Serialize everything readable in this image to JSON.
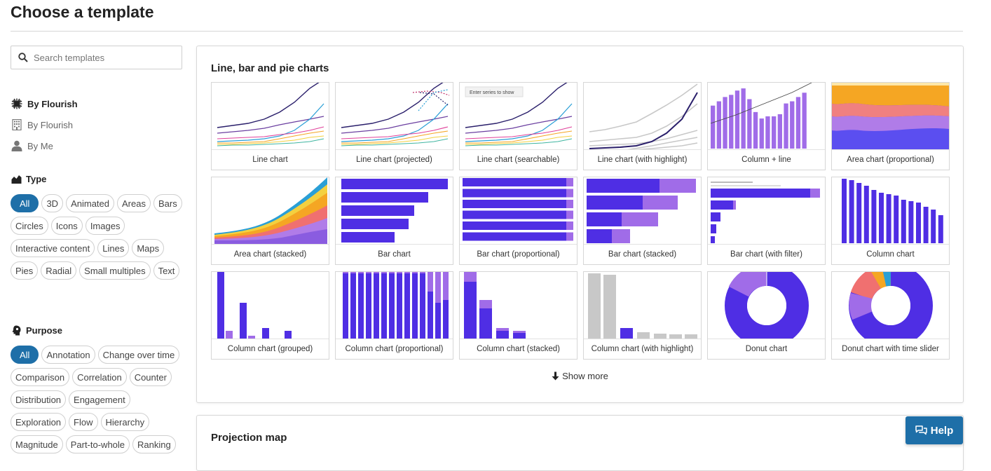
{
  "header": {
    "title": "Choose a template"
  },
  "search": {
    "placeholder": "Search templates"
  },
  "sidebar": {
    "sources": [
      {
        "label": "By Flourish",
        "icon": "sunburst-icon"
      },
      {
        "label": "By Flourish",
        "icon": "building-icon"
      },
      {
        "label": "By Me",
        "icon": "person-icon"
      }
    ],
    "type_heading": "Type",
    "type_filters": [
      "All",
      "3D",
      "Animated",
      "Areas",
      "Bars",
      "Circles",
      "Icons",
      "Images",
      "Interactive content",
      "Lines",
      "Maps",
      "Pies",
      "Radial",
      "Small multiples",
      "Text"
    ],
    "purpose_heading": "Purpose",
    "purpose_filters": [
      "All",
      "Annotation",
      "Change over time",
      "Comparison",
      "Correlation",
      "Counter",
      "Distribution",
      "Engagement",
      "Exploration",
      "Flow",
      "Hierarchy",
      "Magnitude",
      "Part-to-whole",
      "Ranking"
    ]
  },
  "sections": [
    {
      "title": "Line, bar and pie charts",
      "templates": [
        "Line chart",
        "Line chart (projected)",
        "Line chart (searchable)",
        "Line chart (with highlight)",
        "Column + line",
        "Area chart (proportional)",
        "Area chart (stacked)",
        "Bar chart",
        "Bar chart (proportional)",
        "Bar chart (stacked)",
        "Bar chart (with filter)",
        "Column chart",
        "Column chart (grouped)",
        "Column chart (proportional)",
        "Column chart (stacked)",
        "Column chart (with highlight)",
        "Donut chart",
        "Donut chart with time slider"
      ],
      "searchable_hint": "Enter series to show",
      "show_more": "Show more"
    },
    {
      "title": "Projection map"
    }
  ],
  "help": {
    "label": "Help"
  },
  "colors": {
    "accent": "#1e6fa8",
    "purple": "#4f2ee4",
    "lavender": "#a06ce8"
  }
}
